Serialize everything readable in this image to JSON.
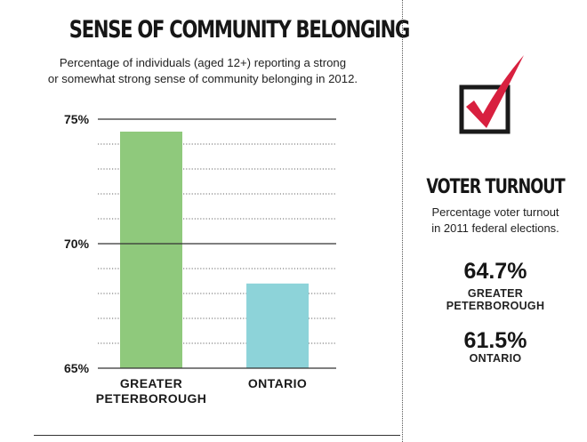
{
  "chart_data": {
    "type": "bar",
    "title": "SENSE OF COMMUNITY BELONGING",
    "subtitle_lines": [
      "Percentage of individuals (aged 12+) reporting a strong",
      "or somewhat strong sense of community belonging in 2012."
    ],
    "categories": [
      "GREATER PETERBOROUGH",
      "ONTARIO"
    ],
    "category_label_lines": [
      [
        "GREATER",
        "PETERBOROUGH"
      ],
      [
        "ONTARIO"
      ]
    ],
    "values": [
      74.5,
      68.4
    ],
    "bar_colors": [
      "#8fc97c",
      "#8dd3d9"
    ],
    "ylim": [
      65,
      75
    ],
    "yticks": [
      65,
      70,
      75
    ],
    "ytick_labels": [
      "65%",
      "70%",
      "75%"
    ],
    "minor_gridline_step": 1,
    "grid": true,
    "xlabel": "",
    "ylabel": ""
  },
  "voter_turnout": {
    "title": "VOTER TURNOUT",
    "subtitle_lines": [
      "Percentage voter turnout",
      "in 2011 federal elections."
    ],
    "stats": [
      {
        "value": "64.7%",
        "label_lines": [
          "GREATER",
          "PETERBOROUGH"
        ]
      },
      {
        "value": "61.5%",
        "label_lines": [
          "ONTARIO"
        ]
      }
    ],
    "icon": "checkmark-box-icon",
    "accent_color": "#d8203f"
  }
}
